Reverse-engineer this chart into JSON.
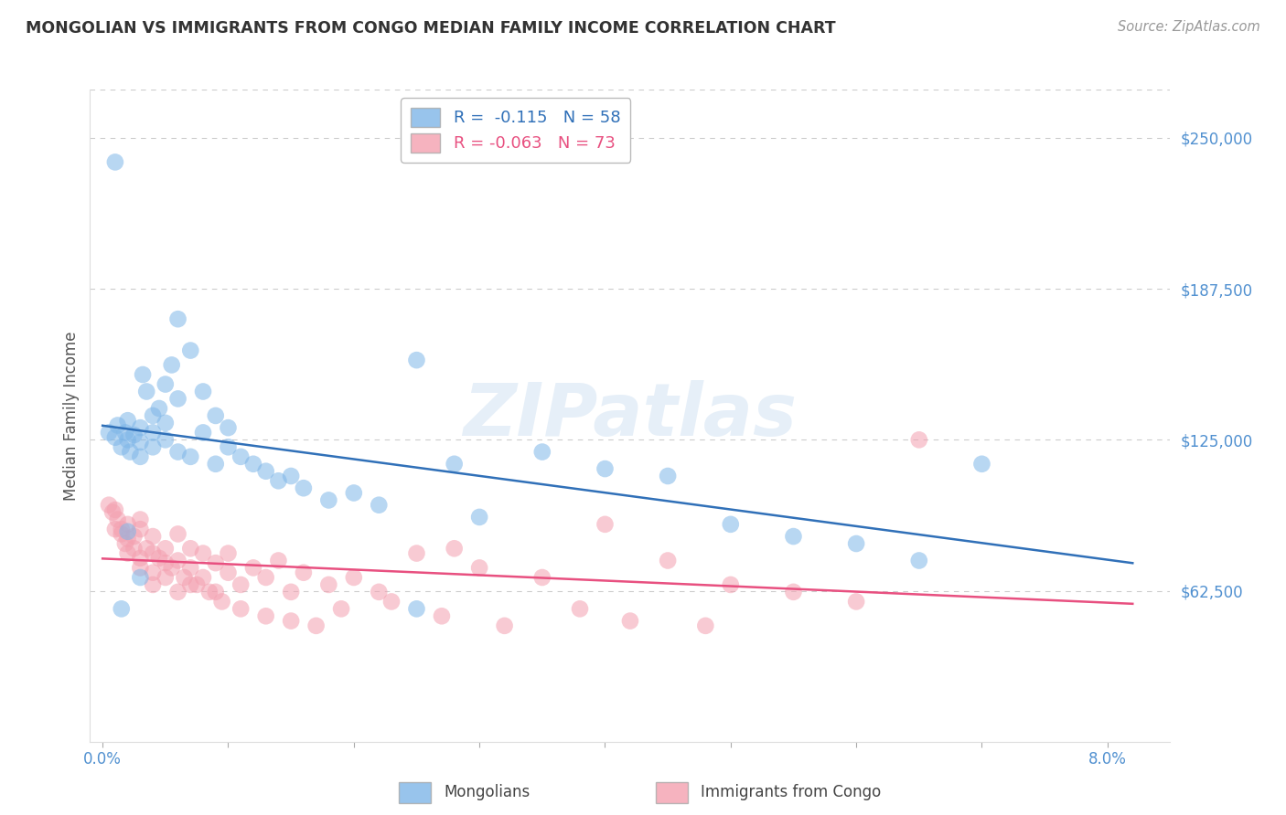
{
  "title": "MONGOLIAN VS IMMIGRANTS FROM CONGO MEDIAN FAMILY INCOME CORRELATION CHART",
  "source": "Source: ZipAtlas.com",
  "ylabel": "Median Family Income",
  "ytick_labels": [
    "$62,500",
    "$125,000",
    "$187,500",
    "$250,000"
  ],
  "ytick_values": [
    62500,
    125000,
    187500,
    250000
  ],
  "ymin": 0,
  "ymax": 270000,
  "xmin": -0.001,
  "xmax": 0.085,
  "legend_r_blue": "-0.115",
  "legend_n_blue": "58",
  "legend_r_pink": "-0.063",
  "legend_n_pink": "73",
  "watermark": "ZIPatlas",
  "blue_color": "#7EB6E8",
  "pink_color": "#F4A0B0",
  "blue_line_color": "#3070B8",
  "pink_line_color": "#E85080",
  "title_color": "#333333",
  "source_color": "#999999",
  "axis_label_color": "#5090D0",
  "grid_color": "#CCCCCC",
  "mongolians_x": [
    0.0005,
    0.001,
    0.0012,
    0.0015,
    0.0018,
    0.002,
    0.002,
    0.0022,
    0.0025,
    0.003,
    0.003,
    0.003,
    0.0032,
    0.0035,
    0.004,
    0.004,
    0.004,
    0.0045,
    0.005,
    0.005,
    0.005,
    0.0055,
    0.006,
    0.006,
    0.006,
    0.007,
    0.007,
    0.008,
    0.008,
    0.009,
    0.009,
    0.01,
    0.01,
    0.011,
    0.012,
    0.013,
    0.014,
    0.015,
    0.016,
    0.018,
    0.02,
    0.022,
    0.025,
    0.028,
    0.03,
    0.035,
    0.04,
    0.045,
    0.05,
    0.055,
    0.06,
    0.065,
    0.07,
    0.001,
    0.002,
    0.003,
    0.0015,
    0.025
  ],
  "mongolians_y": [
    128000,
    126000,
    131000,
    122000,
    128000,
    125000,
    133000,
    120000,
    127000,
    130000,
    118000,
    124000,
    152000,
    145000,
    135000,
    128000,
    122000,
    138000,
    132000,
    125000,
    148000,
    156000,
    175000,
    142000,
    120000,
    162000,
    118000,
    145000,
    128000,
    135000,
    115000,
    130000,
    122000,
    118000,
    115000,
    112000,
    108000,
    110000,
    105000,
    100000,
    103000,
    98000,
    158000,
    115000,
    93000,
    120000,
    113000,
    110000,
    90000,
    85000,
    82000,
    75000,
    115000,
    240000,
    87000,
    68000,
    55000,
    55000
  ],
  "congo_x": [
    0.0005,
    0.001,
    0.001,
    0.0012,
    0.0015,
    0.0018,
    0.002,
    0.002,
    0.002,
    0.0025,
    0.003,
    0.003,
    0.003,
    0.003,
    0.004,
    0.004,
    0.004,
    0.004,
    0.005,
    0.005,
    0.005,
    0.006,
    0.006,
    0.006,
    0.007,
    0.007,
    0.007,
    0.008,
    0.008,
    0.009,
    0.009,
    0.01,
    0.01,
    0.011,
    0.012,
    0.013,
    0.014,
    0.015,
    0.016,
    0.018,
    0.02,
    0.022,
    0.025,
    0.028,
    0.03,
    0.035,
    0.04,
    0.045,
    0.05,
    0.055,
    0.06,
    0.0008,
    0.0015,
    0.0025,
    0.0035,
    0.0045,
    0.0055,
    0.0065,
    0.0075,
    0.0085,
    0.0095,
    0.011,
    0.013,
    0.015,
    0.017,
    0.019,
    0.023,
    0.027,
    0.032,
    0.038,
    0.042,
    0.048,
    0.065
  ],
  "congo_y": [
    98000,
    96000,
    88000,
    92000,
    86000,
    82000,
    90000,
    78000,
    84000,
    80000,
    88000,
    76000,
    72000,
    92000,
    85000,
    70000,
    78000,
    65000,
    80000,
    74000,
    68000,
    75000,
    62000,
    86000,
    72000,
    80000,
    65000,
    78000,
    68000,
    74000,
    62000,
    70000,
    78000,
    65000,
    72000,
    68000,
    75000,
    62000,
    70000,
    65000,
    68000,
    62000,
    78000,
    80000,
    72000,
    68000,
    90000,
    75000,
    65000,
    62000,
    58000,
    95000,
    88000,
    85000,
    80000,
    76000,
    72000,
    68000,
    65000,
    62000,
    58000,
    55000,
    52000,
    50000,
    48000,
    55000,
    58000,
    52000,
    48000,
    55000,
    50000,
    48000,
    125000
  ]
}
